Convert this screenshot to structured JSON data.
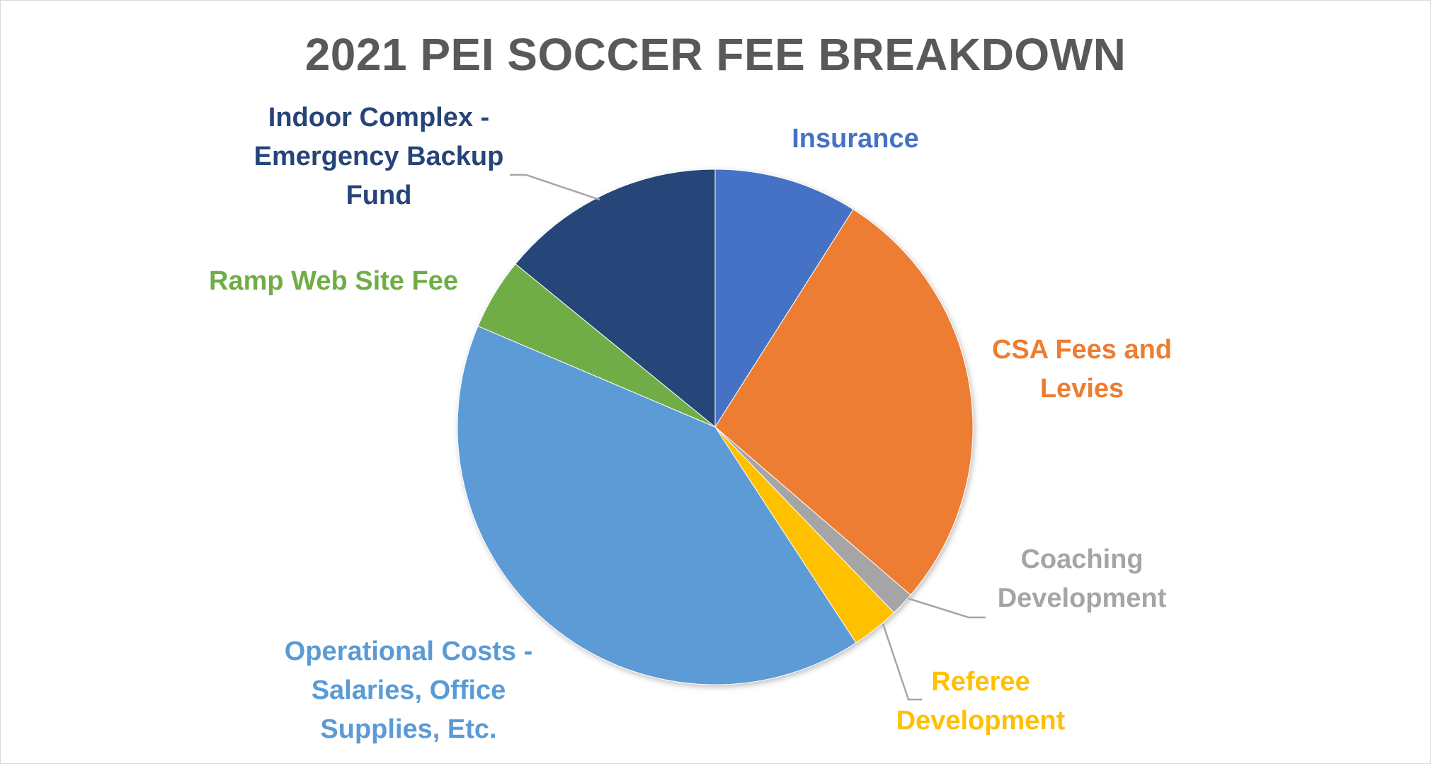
{
  "chart_data": {
    "type": "pie",
    "title": "2021 PEI SOCCER FEE BREAKDOWN",
    "categories": [
      "Insurance",
      "CSA Fees and Levies",
      "Coaching Development",
      "Referee Development",
      "Operational Costs - Salaries, Office Supplies, Etc.",
      "Ramp Web Site Fee",
      "Indoor Complex - Emergency Backup Fund"
    ],
    "values": [
      9.0,
      27.3,
      1.5,
      3.0,
      40.6,
      4.5,
      14.1
    ],
    "colors": [
      "#4472C4",
      "#ED7D31",
      "#A5A5A5",
      "#FFC000",
      "#5B9BD5",
      "#70AD47",
      "#264478"
    ],
    "labels": [
      {
        "lines": [
          "Insurance"
        ]
      },
      {
        "lines": [
          "CSA Fees and",
          "Levies"
        ]
      },
      {
        "lines": [
          "Coaching",
          "Development"
        ]
      },
      {
        "lines": [
          "Referee",
          "Development"
        ]
      },
      {
        "lines": [
          "Operational Costs -",
          "Salaries, Office",
          "Supplies, Etc."
        ]
      },
      {
        "lines": [
          "Ramp Web Site Fee"
        ]
      },
      {
        "lines": [
          "Indoor Complex -",
          "Emergency Backup",
          "Fund"
        ]
      }
    ],
    "legend": "none"
  }
}
